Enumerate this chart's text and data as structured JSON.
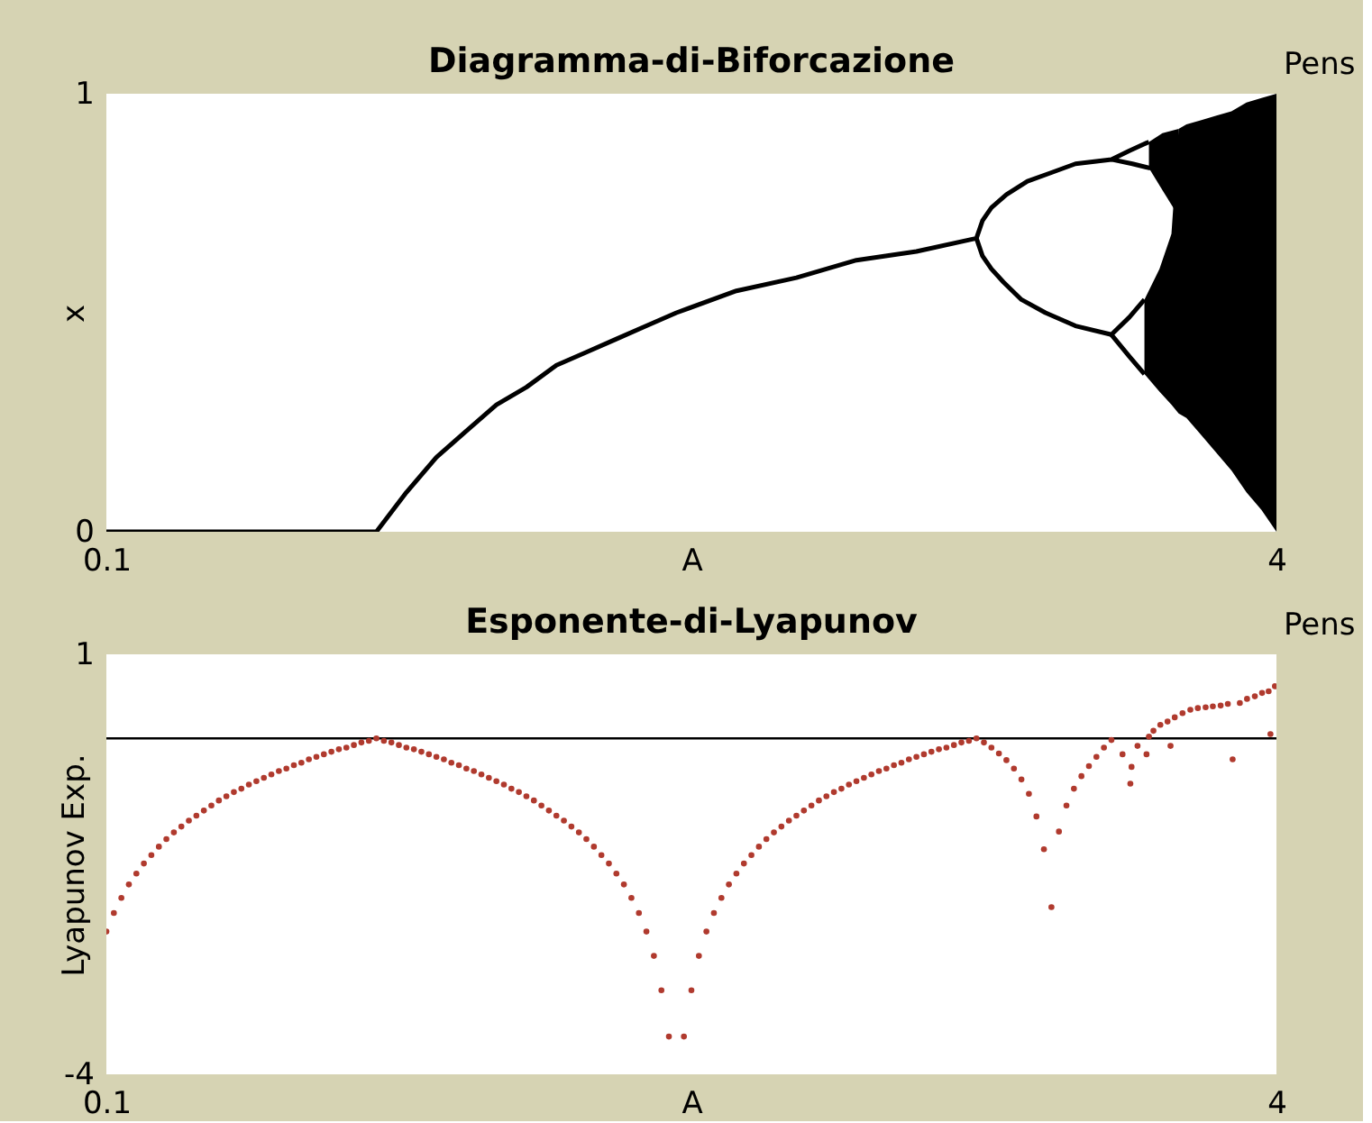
{
  "chart_data": [
    {
      "type": "line",
      "title": "Diagramma-di-Biforcazione",
      "xlabel": "A",
      "ylabel": "x",
      "xlim": [
        0.1,
        4
      ],
      "xticks": [
        0.1,
        4
      ],
      "ylim": [
        0,
        1
      ],
      "yticks": [
        0,
        1
      ],
      "annotations": [
        "Pens"
      ],
      "series": [
        {
          "color": "#000000",
          "x": [
            0.1,
            1.0,
            1.1,
            1.2,
            1.3,
            1.4,
            1.5,
            1.6,
            1.7,
            1.8,
            1.9,
            2.0,
            2.2,
            2.4,
            2.6,
            2.8,
            3.0,
            3.02,
            3.05,
            3.1,
            3.17,
            3.25,
            3.33,
            3.45,
            3.51,
            3.575
          ],
          "values": [
            0,
            0,
            0.09,
            0.17,
            0.23,
            0.29,
            0.33,
            0.38,
            0.41,
            0.44,
            0.47,
            0.5,
            0.55,
            0.58,
            0.62,
            0.64,
            0.67,
            0.71,
            0.74,
            0.77,
            0.8,
            0.82,
            0.84,
            0.85,
            0.87,
            0.89
          ]
        },
        {
          "color": "#000000",
          "x": [
            3.0,
            3.02,
            3.05,
            3.09,
            3.15,
            3.23,
            3.33,
            3.45,
            3.51,
            3.56
          ],
          "values": [
            0.67,
            0.63,
            0.6,
            0.57,
            0.53,
            0.5,
            0.47,
            0.45,
            0.49,
            0.53
          ]
        },
        {
          "color": "#000000",
          "x": [
            3.45,
            3.52,
            3.58
          ],
          "values": [
            0.85,
            0.84,
            0.83
          ]
        },
        {
          "color": "#000000",
          "x": [
            3.45,
            3.51,
            3.56
          ],
          "values": [
            0.45,
            0.4,
            0.36
          ]
        },
        {
          "color": "#000000",
          "x": [
            3.575,
            3.62,
            3.674
          ],
          "values": [
            null,
            null,
            null
          ],
          "upper": [
            0.89,
            0.91,
            0.92
          ],
          "lower": [
            0.83,
            0.78,
            0.72
          ]
        },
        {
          "color": "#000000",
          "x": [
            3.56,
            3.61,
            3.65,
            3.674,
            3.7,
            3.75,
            3.8,
            3.85,
            3.9,
            3.95,
            4.0
          ],
          "values": [
            null,
            null,
            null,
            null,
            null,
            null,
            null,
            null,
            null,
            null,
            null
          ],
          "upper": [
            0.53,
            0.6,
            0.68,
            0.92,
            0.93,
            0.94,
            0.95,
            0.96,
            0.98,
            0.99,
            1.0
          ],
          "lower": [
            0.36,
            0.32,
            0.29,
            0.27,
            0.26,
            0.22,
            0.18,
            0.14,
            0.09,
            0.05,
            0.0
          ]
        }
      ]
    },
    {
      "type": "scatter",
      "title": "Esponente-di-Lyapunov",
      "xlabel": "A",
      "ylabel": "Lyapunov Exp.",
      "xlim": [
        0.1,
        4
      ],
      "xticks": [
        0.1,
        4
      ],
      "ylim": [
        -4,
        1
      ],
      "yticks": [
        -4,
        1
      ],
      "marker": "circle",
      "annotations": [
        "Pens"
      ],
      "ref_lines": [
        {
          "axis": "y",
          "value": 0,
          "color": "#000000"
        }
      ],
      "series": [
        {
          "color": "#b03a2e",
          "x": [
            0.1,
            0.125,
            0.15,
            0.175,
            0.2,
            0.225,
            0.25,
            0.275,
            0.3,
            0.325,
            0.35,
            0.375,
            0.4,
            0.425,
            0.45,
            0.475,
            0.5,
            0.525,
            0.55,
            0.575,
            0.6,
            0.625,
            0.65,
            0.675,
            0.7,
            0.725,
            0.75,
            0.775,
            0.8,
            0.825,
            0.85,
            0.875,
            0.9,
            0.925,
            0.95,
            0.975,
            1.0,
            1.025,
            1.05,
            1.075,
            1.1,
            1.125,
            1.15,
            1.175,
            1.2,
            1.225,
            1.25,
            1.275,
            1.3,
            1.325,
            1.35,
            1.375,
            1.4,
            1.425,
            1.45,
            1.475,
            1.5,
            1.525,
            1.55,
            1.575,
            1.6,
            1.625,
            1.65,
            1.675,
            1.7,
            1.725,
            1.75,
            1.775,
            1.8,
            1.825,
            1.85,
            1.875,
            1.9,
            1.925,
            1.95,
            1.975,
            2.025,
            2.05,
            2.075,
            2.1,
            2.125,
            2.15,
            2.175,
            2.2,
            2.225,
            2.25,
            2.275,
            2.3,
            2.325,
            2.35,
            2.375,
            2.4,
            2.425,
            2.45,
            2.475,
            2.5,
            2.525,
            2.55,
            2.575,
            2.6,
            2.625,
            2.65,
            2.675,
            2.7,
            2.725,
            2.75,
            2.775,
            2.8,
            2.825,
            2.85,
            2.875,
            2.9,
            2.925,
            2.95,
            2.975,
            3.0,
            3.025,
            3.05,
            3.075,
            3.1,
            3.125,
            3.15,
            3.175,
            3.2,
            3.225,
            3.25,
            3.275,
            3.3,
            3.325,
            3.35,
            3.375,
            3.4,
            3.425,
            3.45,
            3.487,
            3.513,
            3.517,
            3.537,
            3.567,
            3.575,
            3.59,
            3.613,
            3.637,
            3.647,
            3.661,
            3.687,
            3.713,
            3.738,
            3.764,
            3.788,
            3.814,
            3.838,
            3.854,
            3.878,
            3.902,
            3.928,
            3.952,
            3.974,
            3.98,
            3.995
          ],
          "values": [
            -2.3,
            -2.08,
            -1.9,
            -1.74,
            -1.61,
            -1.49,
            -1.39,
            -1.29,
            -1.2,
            -1.12,
            -1.05,
            -0.98,
            -0.92,
            -0.86,
            -0.8,
            -0.74,
            -0.69,
            -0.64,
            -0.6,
            -0.55,
            -0.51,
            -0.47,
            -0.43,
            -0.39,
            -0.36,
            -0.32,
            -0.29,
            -0.25,
            -0.22,
            -0.19,
            -0.16,
            -0.13,
            -0.11,
            -0.08,
            -0.05,
            -0.03,
            0.0,
            -0.03,
            -0.05,
            -0.08,
            -0.11,
            -0.13,
            -0.16,
            -0.19,
            -0.22,
            -0.25,
            -0.29,
            -0.32,
            -0.36,
            -0.39,
            -0.43,
            -0.47,
            -0.51,
            -0.55,
            -0.6,
            -0.64,
            -0.69,
            -0.74,
            -0.8,
            -0.86,
            -0.92,
            -0.98,
            -1.05,
            -1.12,
            -1.2,
            -1.29,
            -1.39,
            -1.49,
            -1.61,
            -1.74,
            -1.9,
            -2.08,
            -2.3,
            -2.59,
            -3.0,
            -3.55,
            -3.55,
            -3.0,
            -2.59,
            -2.3,
            -2.08,
            -1.9,
            -1.74,
            -1.61,
            -1.49,
            -1.39,
            -1.29,
            -1.2,
            -1.12,
            -1.05,
            -0.98,
            -0.92,
            -0.86,
            -0.8,
            -0.74,
            -0.69,
            -0.64,
            -0.6,
            -0.55,
            -0.51,
            -0.47,
            -0.43,
            -0.39,
            -0.36,
            -0.32,
            -0.29,
            -0.25,
            -0.22,
            -0.19,
            -0.16,
            -0.13,
            -0.11,
            -0.08,
            -0.05,
            -0.03,
            0.0,
            -0.05,
            -0.11,
            -0.18,
            -0.26,
            -0.36,
            -0.49,
            -0.66,
            -0.93,
            -1.32,
            -2.01,
            -1.11,
            -0.8,
            -0.6,
            -0.45,
            -0.33,
            -0.22,
            -0.11,
            -0.02,
            -0.19,
            -0.54,
            -0.34,
            -0.09,
            -0.19,
            0.02,
            0.09,
            0.16,
            0.2,
            -0.09,
            0.25,
            0.3,
            0.34,
            0.36,
            0.37,
            0.38,
            0.39,
            0.41,
            -0.25,
            0.42,
            0.47,
            0.5,
            0.54,
            0.56,
            0.05,
            0.62
          ]
        }
      ]
    }
  ]
}
